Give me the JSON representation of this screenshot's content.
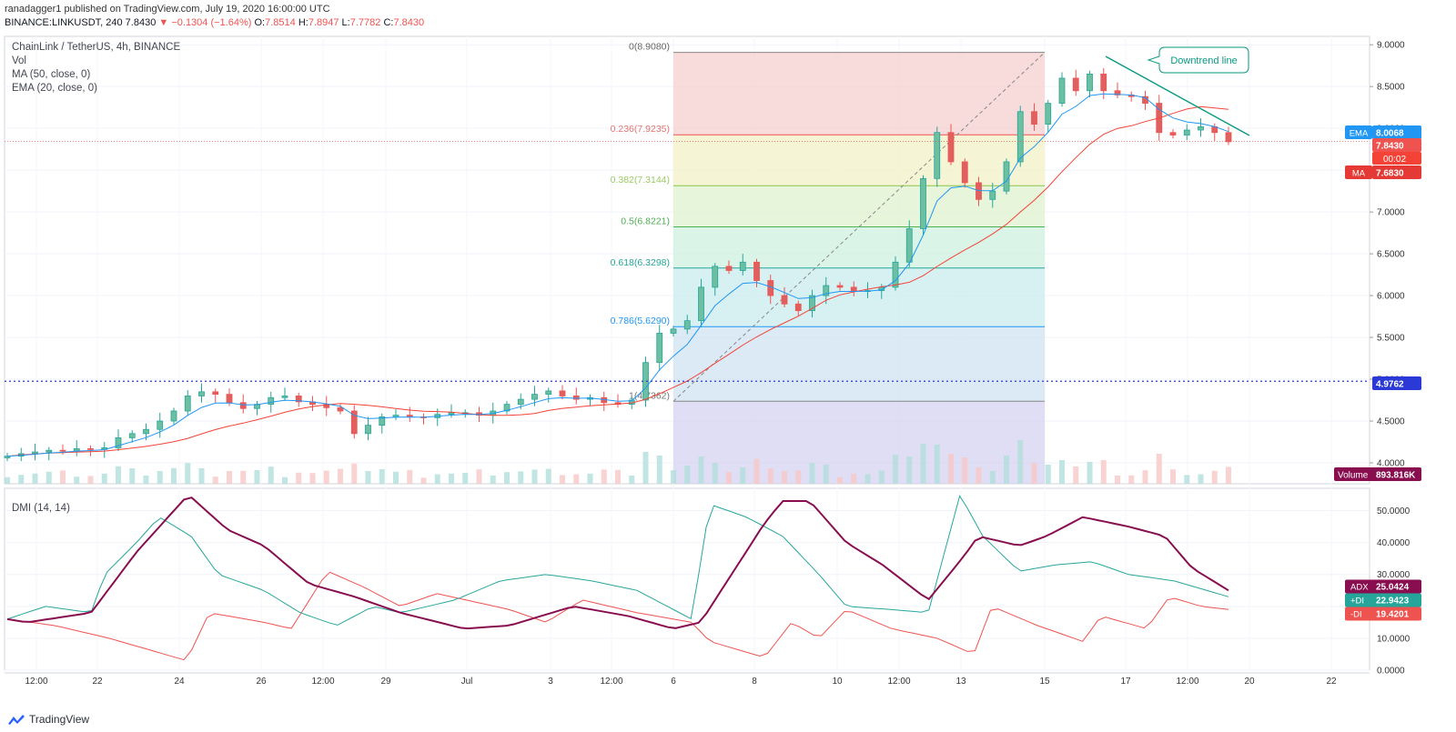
{
  "header": {
    "published": "ranadagger1 published on TradingView.com, July 19, 2020 16:00:00 UTC",
    "symbol_line": "BINANCE:LINKUSDT, 240",
    "last": "7.8430",
    "change_glyph": "▼",
    "change": "−0.1304 (−1.64%)",
    "o_label": "O:",
    "o": "7.8514",
    "h_label": "H:",
    "h": "7.8947",
    "l_label": "L:",
    "l": "7.7782",
    "c_label": "C:",
    "c": "7.8430"
  },
  "legend": {
    "title": "ChainLink / TetherUS, 4h, BINANCE",
    "vol": "Vol",
    "ma": "MA (50, close, 0)",
    "ema": "EMA (20, close, 0)",
    "dmi": "DMI (14, 14)"
  },
  "brand": {
    "name": "TradingView"
  },
  "chart_data": [
    {
      "type": "candlestick",
      "title": "ChainLink / TetherUS, 4h, BINANCE",
      "y_range": [
        3.75,
        9.1
      ],
      "y_ticks": [
        "9.0000",
        "8.5000",
        "8.0000",
        "7.5000",
        "7.0000",
        "6.5000",
        "6.0000",
        "5.5000",
        "5.0000",
        "4.5000",
        "4.0000"
      ],
      "x_ticks": [
        "12:00",
        "22",
        "24",
        "26",
        "12:00",
        "29",
        "Jul",
        "3",
        "12:00",
        "6",
        "8",
        "10",
        "12:00",
        "13",
        "15",
        "17",
        "12:00",
        "20",
        "22"
      ],
      "series_close": [
        4.08,
        4.11,
        4.13,
        4.15,
        4.14,
        4.17,
        4.16,
        4.18,
        4.3,
        4.35,
        4.4,
        4.5,
        4.62,
        4.8,
        4.85,
        4.82,
        4.72,
        4.65,
        4.7,
        4.78,
        4.8,
        4.73,
        4.7,
        4.66,
        4.62,
        4.35,
        4.45,
        4.55,
        4.57,
        4.55,
        4.54,
        4.58,
        4.6,
        4.6,
        4.57,
        4.62,
        4.7,
        4.76,
        4.82,
        4.86,
        4.8,
        4.76,
        4.78,
        4.72,
        4.7,
        4.75,
        5.2,
        5.55,
        5.6,
        5.7,
        6.1,
        6.35,
        6.3,
        6.4,
        6.18,
        6.0,
        5.9,
        5.82,
        6.0,
        6.12,
        6.1,
        6.05,
        6.06,
        6.1,
        6.4,
        6.8,
        7.4,
        7.95,
        7.6,
        7.35,
        7.15,
        7.25,
        7.6,
        8.2,
        8.05,
        8.3,
        8.6,
        8.45,
        8.65,
        8.45,
        8.4,
        8.38,
        8.3,
        7.95,
        7.92,
        7.98,
        8.02,
        7.95,
        7.84
      ],
      "ema_20_last": "8.0068",
      "ma_50_last": "7.6830",
      "last_price": "7.8430",
      "countdown": "00:02",
      "level_line": "4.9762",
      "volume_last": "893.816K",
      "ema_label": "EMA",
      "ma_label": "MA",
      "volume_label": "Volume",
      "fib_levels": [
        {
          "label": "0(8.9080)",
          "value": 8.908
        },
        {
          "label": "0.236(7.9235)",
          "value": 7.9235
        },
        {
          "label": "0.382(7.3144)",
          "value": 7.3144
        },
        {
          "label": "0.5(6.8221)",
          "value": 6.8221
        },
        {
          "label": "0.618(6.3298)",
          "value": 6.3298
        },
        {
          "label": "0.786(5.6290)",
          "value": 5.629
        },
        {
          "label": "1(4.7362)",
          "value": 4.7362
        }
      ],
      "annotation": "Downtrend line",
      "colors": {
        "up": "#26a69a",
        "down": "#ef5350",
        "ema": "#2196f3",
        "ma": "#f44336",
        "trendline": "#089981",
        "level": "#2b3ad6"
      }
    },
    {
      "type": "line",
      "title": "DMI (14, 14)",
      "y_range": [
        0,
        57
      ],
      "y_ticks": [
        "50.0000",
        "40.0000",
        "30.0000",
        "20.0000",
        "10.0000",
        "0.0000"
      ],
      "series": [
        {
          "name": "ADX",
          "last": "25.0424",
          "color": "#880e4f"
        },
        {
          "name": "+DI",
          "last": "22.9423",
          "color": "#26a69a"
        },
        {
          "name": "-DI",
          "last": "19.4201",
          "color": "#ef5350"
        }
      ]
    }
  ]
}
